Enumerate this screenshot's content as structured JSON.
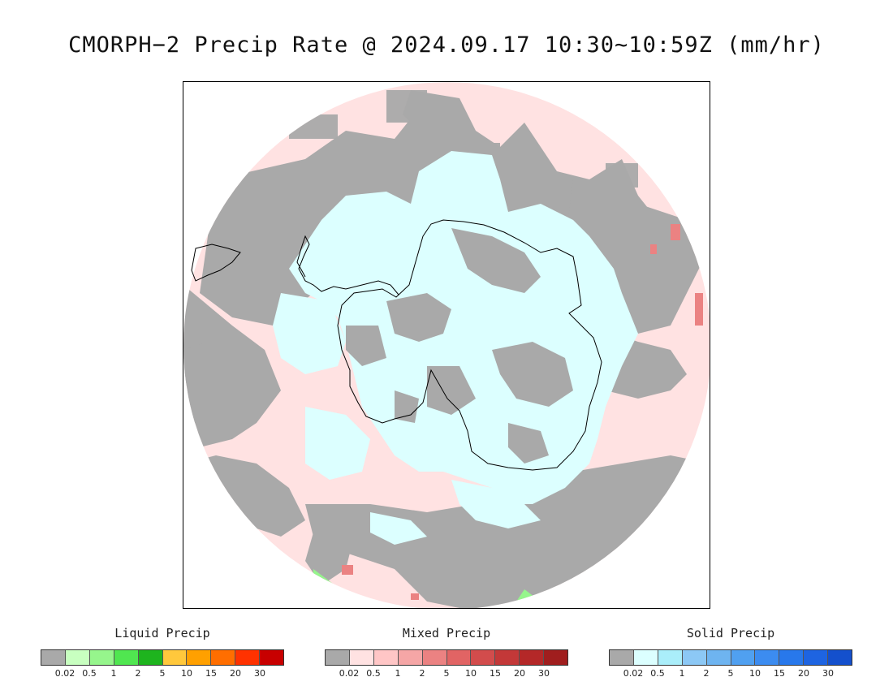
{
  "title": "CMORPH−2 Precip Rate @ 2024.09.17 10:30~10:59Z (mm/hr)",
  "colors": {
    "no_precip": "#a9a9a9",
    "mixed_light": "#ffe2e2",
    "solid_light": "#dcffff",
    "coastline": "#000000"
  },
  "legends": [
    {
      "title": "Liquid Precip",
      "colors": [
        "#a9a9a9",
        "#c8ffc0",
        "#96f58c",
        "#50e650",
        "#1eb41e",
        "#ffc83c",
        "#ffa000",
        "#ff6e00",
        "#ff3200",
        "#c80000"
      ],
      "ticks": [
        "0.02",
        "0.5",
        "1",
        "2",
        "5",
        "10",
        "15",
        "20",
        "30"
      ]
    },
    {
      "title": "Mixed Precip",
      "colors": [
        "#a9a9a9",
        "#ffe2e2",
        "#ffc6c6",
        "#f5a6a6",
        "#eb8282",
        "#e16464",
        "#d24c4c",
        "#c33838",
        "#b42828",
        "#a01e1e"
      ],
      "ticks": [
        "0.02",
        "0.5",
        "1",
        "2",
        "5",
        "10",
        "15",
        "20",
        "30"
      ]
    },
    {
      "title": "Solid Precip",
      "colors": [
        "#a9a9a9",
        "#dcffff",
        "#aaeefa",
        "#8cc8f5",
        "#6eb4f0",
        "#50a0f0",
        "#3c8cf0",
        "#2878eb",
        "#1e64e1",
        "#1450cd"
      ],
      "ticks": [
        "0.02",
        "0.5",
        "1",
        "2",
        "5",
        "10",
        "15",
        "20",
        "30"
      ]
    }
  ]
}
